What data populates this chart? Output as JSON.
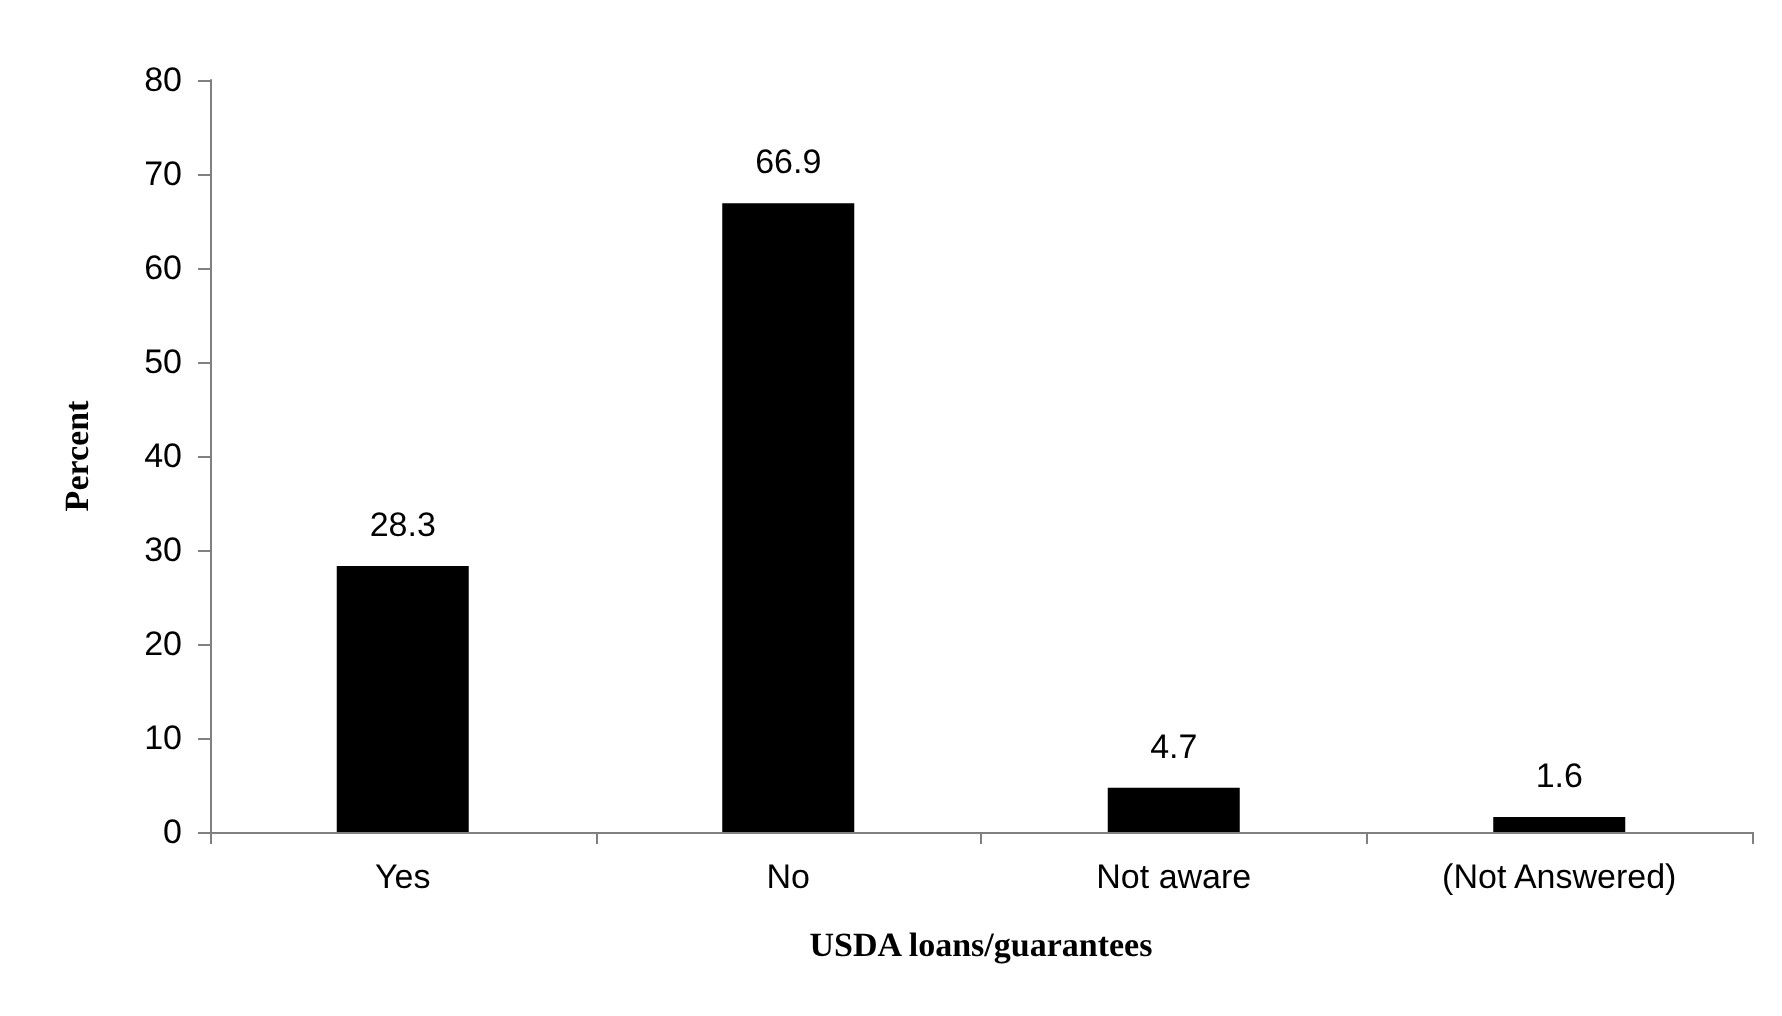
{
  "chart_data": {
    "type": "bar",
    "xlabel": "USDA loans/guarantees",
    "ylabel": "Percent",
    "categories": [
      "Yes",
      "No",
      "Not aware",
      "(Not Answered)"
    ],
    "values": [
      28.3,
      66.9,
      4.7,
      1.6
    ],
    "color": "#000000",
    "ylim": [
      0,
      80
    ],
    "yticks": [
      0,
      10,
      20,
      30,
      40,
      50,
      60,
      70,
      80
    ],
    "data_labels": true
  }
}
